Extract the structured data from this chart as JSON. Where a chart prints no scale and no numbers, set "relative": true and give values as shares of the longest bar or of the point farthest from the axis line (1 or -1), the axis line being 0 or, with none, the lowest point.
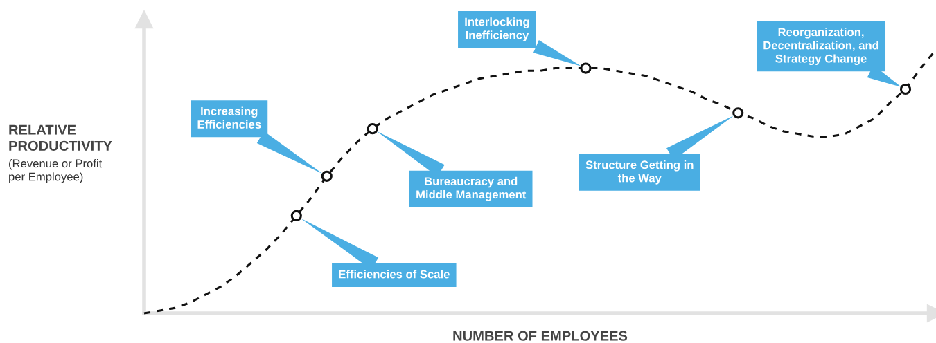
{
  "chart_data": {
    "type": "line",
    "relative": true,
    "xlabel": "NUMBER OF EMPLOYEES",
    "ylabel": "RELATIVE\nPRODUCTIVITY",
    "categories": [
      null,
      null,
      null,
      null,
      null,
      null,
      null,
      null,
      null,
      null,
      null,
      null,
      null,
      null,
      null,
      null,
      null,
      null,
      null,
      null,
      null,
      null,
      null,
      null,
      null,
      null,
      null,
      null,
      null,
      null,
      null,
      null,
      null,
      null,
      null,
      null,
      null,
      null,
      null,
      null,
      null,
      null,
      null,
      null,
      null,
      null,
      null,
      null,
      null,
      null,
      null,
      null,
      null
    ],
    "series": [
      {
        "color": "#111111",
        "line_style": "dashed",
        "values": [
          0,
          0.01,
          0.02,
          0.04,
          0.07,
          0.1,
          0.14,
          0.19,
          0.24,
          0.3,
          0.37,
          0.44,
          0.52,
          0.59,
          0.65,
          0.7,
          0.74,
          0.77,
          0.8,
          0.83,
          0.85,
          0.87,
          0.89,
          0.9,
          0.91,
          0.92,
          0.92,
          0.93,
          0.93,
          0.93,
          0.93,
          0.92,
          0.91,
          0.9,
          0.88,
          0.86,
          0.84,
          0.81,
          0.79,
          0.76,
          0.74,
          0.71,
          0.69,
          0.68,
          0.67,
          0.67,
          0.68,
          0.71,
          0.74,
          0.8,
          0.85,
          0.93,
          1
        ]
      }
    ],
    "annotations": [
      "(Revenue or Profit\nper Employee)",
      "Efficiencies of Scale",
      "Increasing\nEfficiencies",
      "Bureaucracy and\nMiddle Management",
      "Interlocking\nInefficiency",
      "Structure Getting in\nthe Way",
      "Reorganization,\nDecentralization, and\nStrategy Change"
    ]
  }
}
